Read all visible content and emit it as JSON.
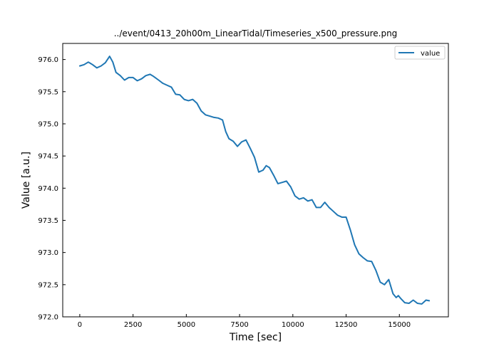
{
  "chart_data": {
    "type": "line",
    "title": "../event/0413_20h00m_LinearTidal/Timeseries_x500_pressure.png",
    "xlabel": "Time [sec]",
    "ylabel": "Value [a.u.]",
    "xlim": [
      -800,
      17300
    ],
    "ylim": [
      972.0,
      976.25
    ],
    "xticks": [
      0,
      2500,
      5000,
      7500,
      10000,
      12500,
      15000
    ],
    "xtick_labels": [
      "0",
      "2500",
      "5000",
      "7500",
      "10000",
      "12500",
      "15000"
    ],
    "yticks": [
      972.0,
      972.5,
      973.0,
      973.5,
      974.0,
      974.5,
      975.0,
      975.5,
      976.0
    ],
    "ytick_labels": [
      "972.0",
      "972.5",
      "973.0",
      "973.5",
      "974.0",
      "974.5",
      "975.0",
      "975.5",
      "976.0"
    ],
    "grid": false,
    "legend": {
      "position": "top-right",
      "entries": [
        "value"
      ]
    },
    "series": [
      {
        "name": "value",
        "color": "#1f77b4",
        "x": [
          0,
          200,
          400,
          600,
          800,
          1000,
          1200,
          1400,
          1550,
          1700,
          1900,
          2100,
          2300,
          2500,
          2700,
          2900,
          3100,
          3300,
          3450,
          3700,
          3900,
          4100,
          4300,
          4500,
          4700,
          4900,
          5100,
          5300,
          5500,
          5700,
          5900,
          6100,
          6300,
          6500,
          6700,
          6850,
          7000,
          7200,
          7400,
          7600,
          7800,
          8000,
          8200,
          8400,
          8600,
          8750,
          8900,
          9100,
          9300,
          9500,
          9700,
          9900,
          10100,
          10300,
          10500,
          10700,
          10900,
          11100,
          11300,
          11500,
          11700,
          11900,
          12100,
          12300,
          12500,
          12700,
          12900,
          13100,
          13300,
          13500,
          13700,
          13900,
          14100,
          14300,
          14500,
          14700,
          14850,
          14950,
          15050,
          15250,
          15450,
          15650,
          15850,
          16050,
          16250,
          16400
        ],
        "values": [
          975.9,
          975.92,
          975.96,
          975.92,
          975.87,
          975.9,
          975.95,
          976.05,
          975.96,
          975.8,
          975.75,
          975.68,
          975.72,
          975.72,
          975.67,
          975.7,
          975.75,
          975.77,
          975.74,
          975.68,
          975.63,
          975.6,
          975.57,
          975.46,
          975.45,
          975.38,
          975.36,
          975.38,
          975.32,
          975.2,
          975.14,
          975.12,
          975.1,
          975.09,
          975.06,
          974.88,
          974.77,
          974.73,
          974.65,
          974.72,
          974.75,
          974.62,
          974.48,
          974.25,
          974.28,
          974.35,
          974.32,
          974.2,
          974.07,
          974.09,
          974.11,
          974.02,
          973.88,
          973.83,
          973.85,
          973.8,
          973.82,
          973.7,
          973.7,
          973.78,
          973.7,
          973.64,
          973.58,
          973.55,
          973.55,
          973.35,
          973.12,
          972.98,
          972.92,
          972.87,
          972.86,
          972.72,
          972.54,
          972.5,
          972.58,
          972.36,
          972.3,
          972.33,
          972.29,
          972.22,
          972.21,
          972.26,
          972.21,
          972.2,
          972.26,
          972.25
        ]
      }
    ]
  }
}
